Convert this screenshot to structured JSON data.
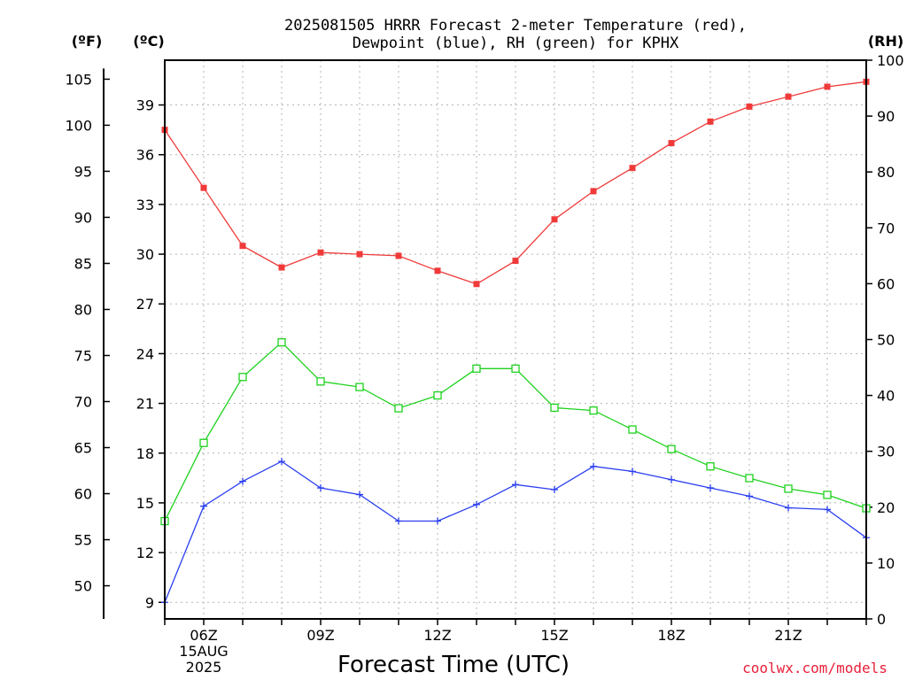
{
  "chart_data": {
    "type": "line",
    "title": [
      "2025081505 HRRR Forecast 2-meter Temperature (red),",
      "Dewpoint (blue), RH (green) for KPHX"
    ],
    "xlabel": "Forecast Time (UTC)",
    "credit": "coolwx.com/models",
    "units": {
      "fahrenheit": "(ºF)",
      "celsius": "(ºC)",
      "rh": "(RH)"
    },
    "x_hours": [
      5,
      6,
      7,
      8,
      9,
      10,
      11,
      12,
      13,
      14,
      15,
      16,
      17,
      18,
      19,
      20,
      21,
      22,
      23
    ],
    "x_ticks": [
      {
        "hour": 6,
        "lines": [
          "06Z",
          "15AUG",
          "2025"
        ]
      },
      {
        "hour": 9,
        "lines": [
          "09Z"
        ]
      },
      {
        "hour": 12,
        "lines": [
          "12Z"
        ]
      },
      {
        "hour": 15,
        "lines": [
          "15Z"
        ]
      },
      {
        "hour": 18,
        "lines": [
          "18Z"
        ]
      },
      {
        "hour": 21,
        "lines": [
          "21Z"
        ]
      }
    ],
    "xlim": [
      5,
      23
    ],
    "ylim_celsius": [
      8,
      41.7
    ],
    "ylim_rh": [
      0,
      100
    ],
    "celsius_ticks": [
      9,
      12,
      15,
      18,
      21,
      24,
      27,
      30,
      33,
      36,
      39
    ],
    "fahrenheit_ticks": [
      50,
      55,
      60,
      65,
      70,
      75,
      80,
      85,
      90,
      95,
      100,
      105
    ],
    "rh_ticks": [
      0,
      10,
      20,
      30,
      40,
      50,
      60,
      70,
      80,
      90,
      100
    ],
    "series": [
      {
        "name": "Temperature",
        "axis": "celsius",
        "color": "#f03a3a",
        "marker": "filled-square",
        "values": [
          37.5,
          34.0,
          30.5,
          29.2,
          30.1,
          30.0,
          29.9,
          29.0,
          28.2,
          29.6,
          32.1,
          33.8,
          35.2,
          36.7,
          38.0,
          38.9,
          39.5,
          40.1,
          40.4
        ]
      },
      {
        "name": "Dewpoint",
        "axis": "celsius",
        "color": "#2a3ef0",
        "marker": "plus",
        "values": [
          9.0,
          14.8,
          16.3,
          17.5,
          15.9,
          15.5,
          13.9,
          13.9,
          14.9,
          16.1,
          15.8,
          17.2,
          16.9,
          16.4,
          15.9,
          15.4,
          14.7,
          14.6,
          12.9
        ]
      },
      {
        "name": "RH",
        "axis": "rh",
        "color": "#1ed21e",
        "marker": "open-square",
        "values": [
          17.5,
          31.5,
          43.3,
          49.5,
          42.5,
          41.5,
          37.7,
          40.0,
          44.8,
          44.8,
          37.8,
          37.3,
          33.9,
          30.4,
          27.3,
          25.2,
          23.3,
          22.2,
          19.8
        ]
      }
    ]
  }
}
